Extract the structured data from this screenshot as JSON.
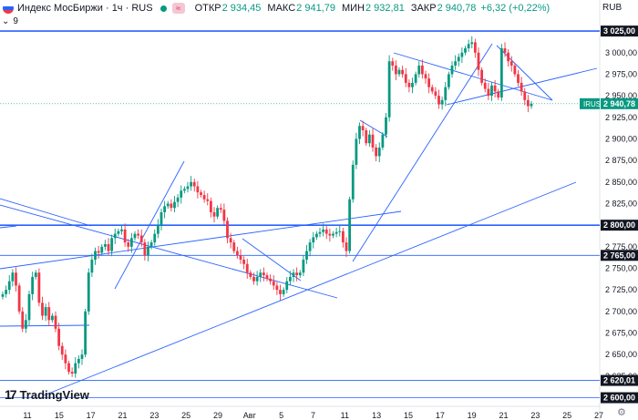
{
  "header": {
    "symbol_name": "Индекс МосБиржи",
    "interval": "1ч",
    "exchange": "RUS",
    "open_label": "ОТКР",
    "open_value": "2 934,45",
    "high_label": "МАКС",
    "high_value": "2 941,79",
    "low_label": "МИН",
    "low_value": "2 932,81",
    "close_label": "ЗАКР",
    "close_value": "2 940,78",
    "change": "+6,32 (+0,22%)",
    "indicator_count": "9",
    "currency": "RUB",
    "colors": {
      "up": "#089981",
      "down": "#f23645",
      "lines": "#2962ff",
      "hbtn": "#e91e63"
    }
  },
  "logo_text": "TradingView",
  "icons": [
    "flag-icon",
    "status-dot-icon",
    "hide-icon",
    "tradingview-logo-icon",
    "settings-icon",
    "collapse-icon"
  ],
  "chart_data": {
    "type": "candlestick",
    "symbol": "IRUS",
    "ylim": [
      2590,
      3042
    ],
    "y_ticks": [
      "3 000,00",
      "2 975,00",
      "2 950,00",
      "2 925,00",
      "2 900,00",
      "2 875,00",
      "2 850,00",
      "2 825,00",
      "2 775,00",
      "2 750,00",
      "2 725,00",
      "2 700,00",
      "2 675,00",
      "2 650,00",
      "2 625,00"
    ],
    "x_ticks": [
      "11",
      "15",
      "17",
      "21",
      "23",
      "25",
      "29",
      "Авг",
      "5",
      "7",
      "11",
      "13",
      "15",
      "17",
      "19",
      "21",
      "23",
      "25",
      "27"
    ],
    "horizontal_levels": [
      {
        "value": 3025,
        "label": "3 025,00"
      },
      {
        "value": 2800,
        "label": "2 800,00"
      },
      {
        "value": 2765,
        "label": "2 765,00"
      },
      {
        "value": 2620.01,
        "label": "2 620,01"
      },
      {
        "value": 2600,
        "label": "2 600,00"
      }
    ],
    "last_price": {
      "tag": "IRUS",
      "value": 2940.78,
      "label": "2 940,78"
    },
    "closes": [
      2720,
      2725,
      2735,
      2745,
      2730,
      2700,
      2680,
      2690,
      2720,
      2740,
      2745,
      2710,
      2695,
      2705,
      2690,
      2695,
      2680,
      2660,
      2650,
      2640,
      2630,
      2628,
      2640,
      2645,
      2650,
      2700,
      2745,
      2760,
      2770,
      2768,
      2775,
      2778,
      2770,
      2785,
      2790,
      2793,
      2795,
      2780,
      2775,
      2785,
      2790,
      2788,
      2780,
      2765,
      2775,
      2780,
      2790,
      2800,
      2815,
      2822,
      2825,
      2820,
      2827,
      2832,
      2840,
      2842,
      2845,
      2850,
      2845,
      2838,
      2835,
      2830,
      2828,
      2815,
      2810,
      2820,
      2818,
      2805,
      2785,
      2780,
      2770,
      2765,
      2760,
      2755,
      2745,
      2740,
      2735,
      2740,
      2745,
      2742,
      2738,
      2735,
      2730,
      2725,
      2720,
      2725,
      2735,
      2740,
      2745,
      2742,
      2745,
      2760,
      2770,
      2780,
      2786,
      2790,
      2792,
      2795,
      2790,
      2788,
      2790,
      2792,
      2793,
      2780,
      2770,
      2830,
      2870,
      2900,
      2915,
      2910,
      2895,
      2905,
      2890,
      2880,
      2890,
      2905,
      2925,
      2990,
      2985,
      2975,
      2980,
      2975,
      2965,
      2960,
      2965,
      2975,
      2985,
      2975,
      2970,
      2960,
      2955,
      2950,
      2940,
      2945,
      2960,
      2975,
      2985,
      2990,
      2995,
      3000,
      3005,
      3010,
      3012,
      3000,
      2980,
      2965,
      2958,
      2950,
      2962,
      2955,
      2948,
      3005,
      3000,
      2990,
      2985,
      2975,
      2965,
      2955,
      2945,
      2938,
      2940.78
    ]
  }
}
